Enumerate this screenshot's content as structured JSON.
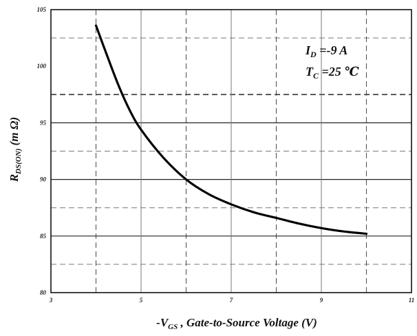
{
  "chart_data": {
    "type": "line",
    "title": "",
    "xlabel": "-V GS , Gate-to-Source Voltage (V)",
    "xlabel_parts": {
      "prefix": "-V",
      "subscript": "GS",
      "rest": " , Gate-to-Source Voltage (V)"
    },
    "ylabel": "RDS(ON) (m Ω)",
    "ylabel_parts": {
      "main": "R",
      "subscript": "DS(ON)",
      "rest": " (m Ω)"
    },
    "xlim": [
      3,
      11
    ],
    "ylim": [
      80,
      105
    ],
    "x_ticks": [
      3,
      5,
      7,
      9,
      11
    ],
    "y_ticks": [
      80,
      85,
      90,
      95,
      100,
      105
    ],
    "x_solid_grid": [
      5,
      7,
      9
    ],
    "x_dashed_grid": [
      4,
      6,
      8,
      10
    ],
    "y_solid_grid": [
      85,
      90,
      95
    ],
    "y_dashed_grid": [
      82.5,
      87.5,
      92.5,
      97.5,
      102.5
    ],
    "grid": true,
    "series": [
      {
        "x": [
          4.0,
          4.25,
          4.5,
          4.75,
          5.0,
          5.5,
          6.0,
          6.5,
          7.0,
          7.5,
          8.0,
          8.5,
          9.0,
          9.5,
          10.0
        ],
        "y": [
          103.6,
          100.9,
          98.3,
          96.1,
          94.4,
          91.9,
          90.0,
          88.7,
          87.8,
          87.1,
          86.6,
          86.1,
          85.7,
          85.4,
          85.2
        ]
      }
    ],
    "annotations": [
      {
        "main": "I",
        "subscript": "D",
        "rest": " =-9 A"
      },
      {
        "main": "T",
        "subscript": "C",
        "rest": " =25 ℃"
      }
    ]
  }
}
